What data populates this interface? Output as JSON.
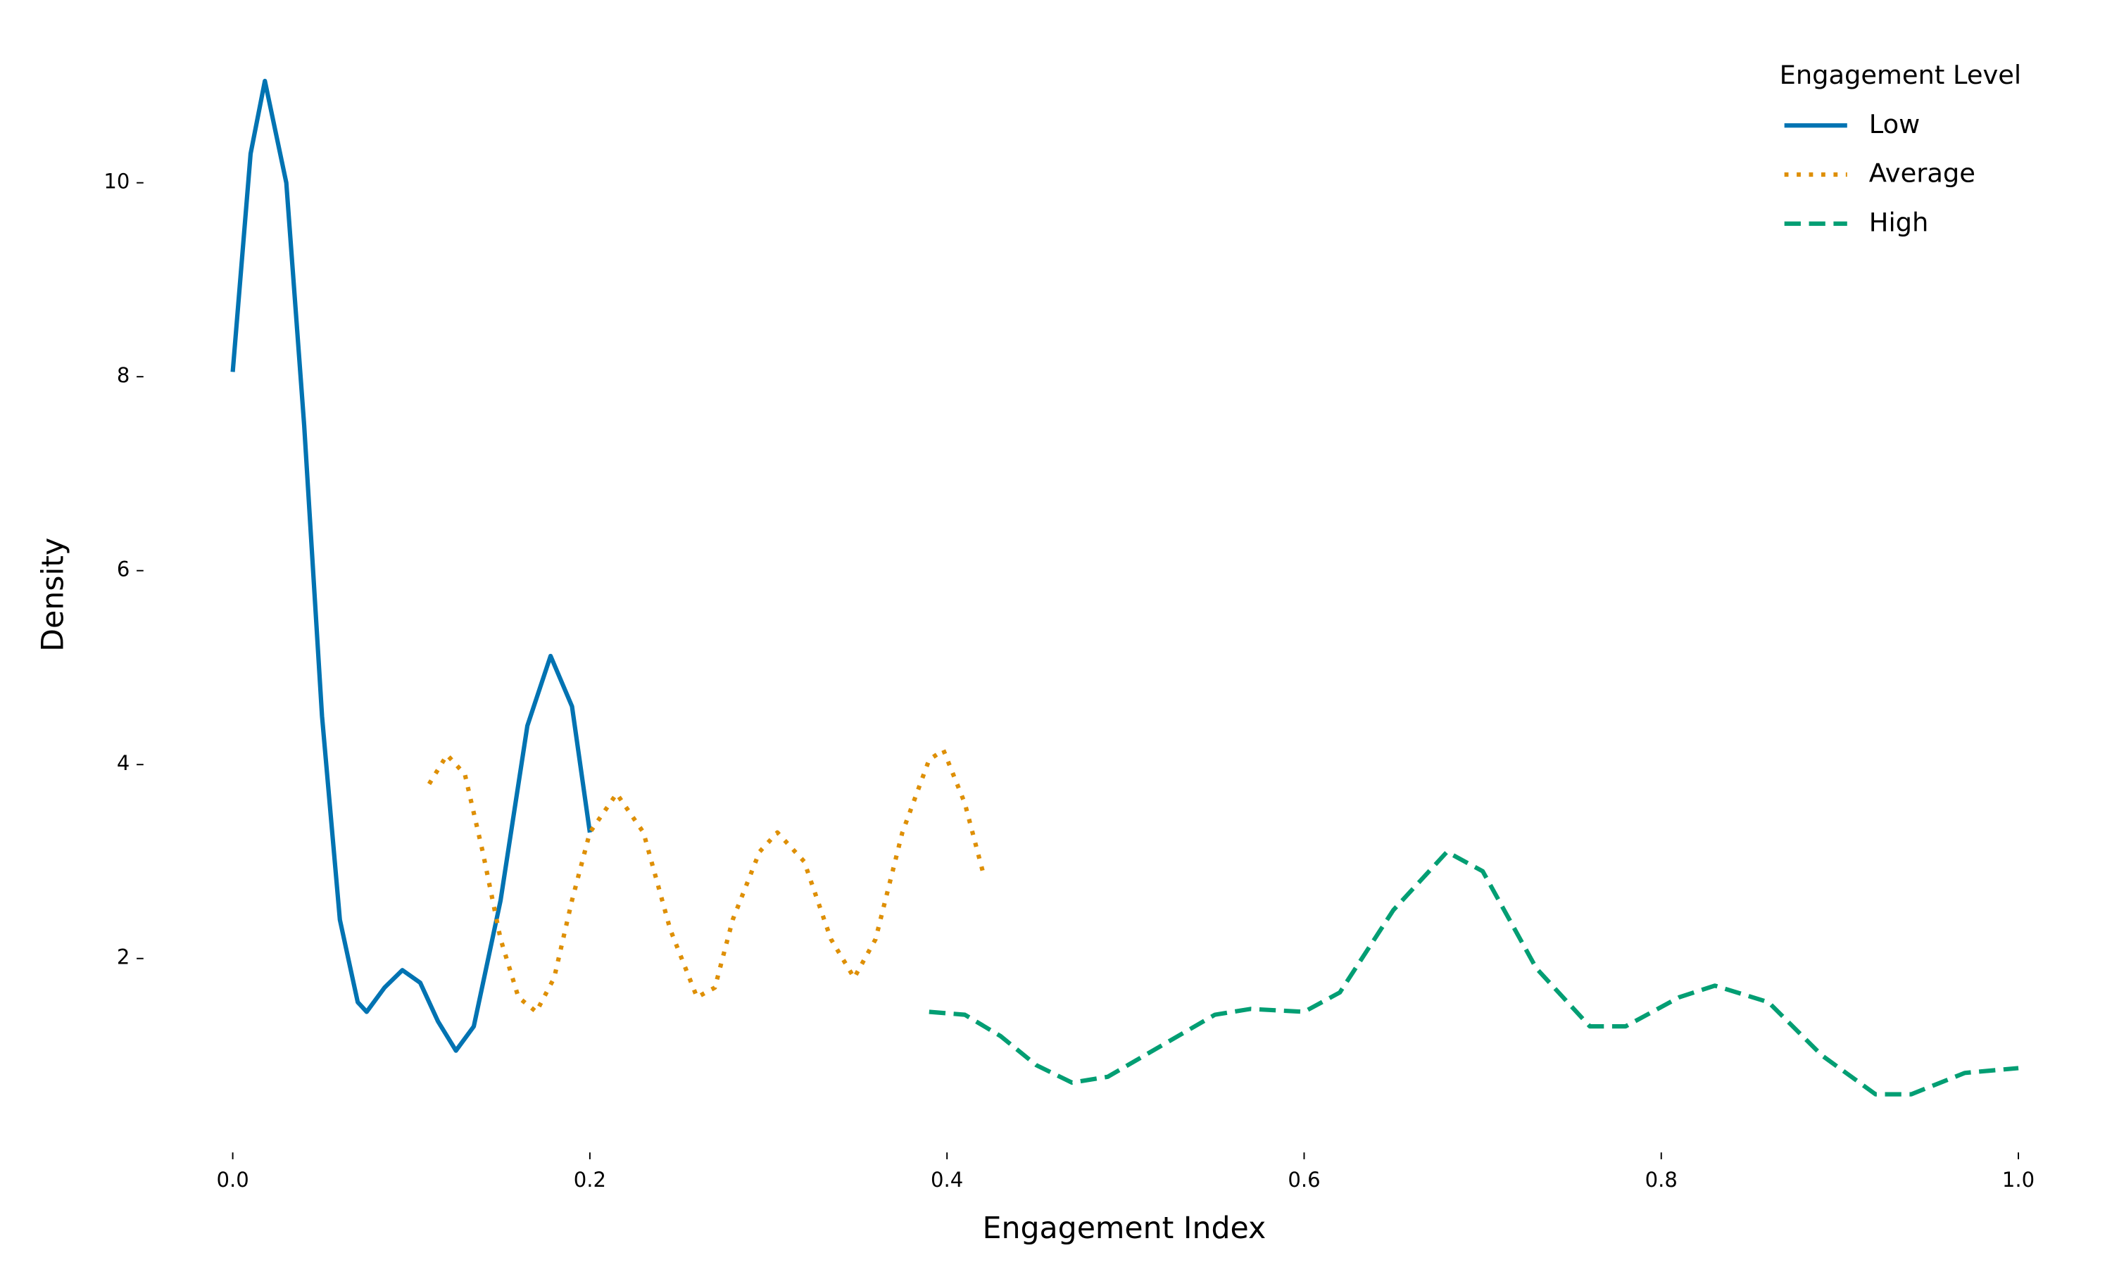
{
  "chart_data": {
    "type": "line",
    "x_label": "Engagement Index",
    "y_label": "Density",
    "legend_title": "Engagement Level",
    "legend": "upper right",
    "xlim": [
      -0.05,
      1.05
    ],
    "ylim": [
      0,
      11.3
    ],
    "xticks": [
      {
        "value": 0,
        "label": "0.0"
      },
      0.2,
      0.4,
      0.6,
      0.8,
      {
        "value": 1,
        "label": "1.0"
      }
    ],
    "yticks": [
      2,
      4,
      6,
      8,
      10
    ],
    "series": [
      {
        "name": "Low",
        "color": "#0173b2",
        "dash": "solid",
        "x": [
          0.0,
          0.01,
          0.018,
          0.03,
          0.04,
          0.05,
          0.06,
          0.07,
          0.075,
          0.085,
          0.095,
          0.105,
          0.115,
          0.125,
          0.135,
          0.15,
          0.165,
          0.178,
          0.19,
          0.2
        ],
        "values": [
          8.05,
          10.3,
          11.05,
          10,
          7.5,
          4.5,
          2.4,
          1.55,
          1.45,
          1.7,
          1.88,
          1.75,
          1.35,
          1.05,
          1.3,
          2.6,
          4.4,
          5.12,
          4.6,
          3.3
        ]
      },
      {
        "name": "Average",
        "color": "#de8f05",
        "dash": "dotted",
        "x": [
          0.11,
          0.12,
          0.13,
          0.14,
          0.15,
          0.16,
          0.17,
          0.18,
          0.19,
          0.2,
          0.215,
          0.23,
          0.245,
          0.26,
          0.27,
          0.28,
          0.295,
          0.305,
          0.32,
          0.335,
          0.348,
          0.36,
          0.375,
          0.39,
          0.398,
          0.41,
          0.42
        ],
        "values": [
          3.8,
          4.1,
          3.9,
          3.1,
          2.2,
          1.6,
          1.45,
          1.8,
          2.6,
          3.3,
          3.7,
          3.3,
          2.3,
          1.6,
          1.7,
          2.4,
          3.1,
          3.3,
          3.0,
          2.2,
          1.8,
          2.2,
          3.3,
          4.05,
          4.15,
          3.6,
          2.9
        ]
      },
      {
        "name": "High",
        "color": "#029e73",
        "dash": "dashed",
        "x": [
          0.39,
          0.41,
          0.43,
          0.45,
          0.47,
          0.49,
          0.52,
          0.55,
          0.57,
          0.6,
          0.62,
          0.65,
          0.68,
          0.7,
          0.73,
          0.76,
          0.78,
          0.81,
          0.83,
          0.86,
          0.89,
          0.92,
          0.94,
          0.97,
          1.0
        ],
        "values": [
          1.45,
          1.42,
          1.2,
          0.9,
          0.72,
          0.78,
          1.1,
          1.42,
          1.48,
          1.45,
          1.65,
          2.5,
          3.1,
          2.9,
          1.9,
          1.3,
          1.3,
          1.6,
          1.72,
          1.55,
          1.0,
          0.6,
          0.6,
          0.82,
          0.87
        ]
      }
    ]
  }
}
